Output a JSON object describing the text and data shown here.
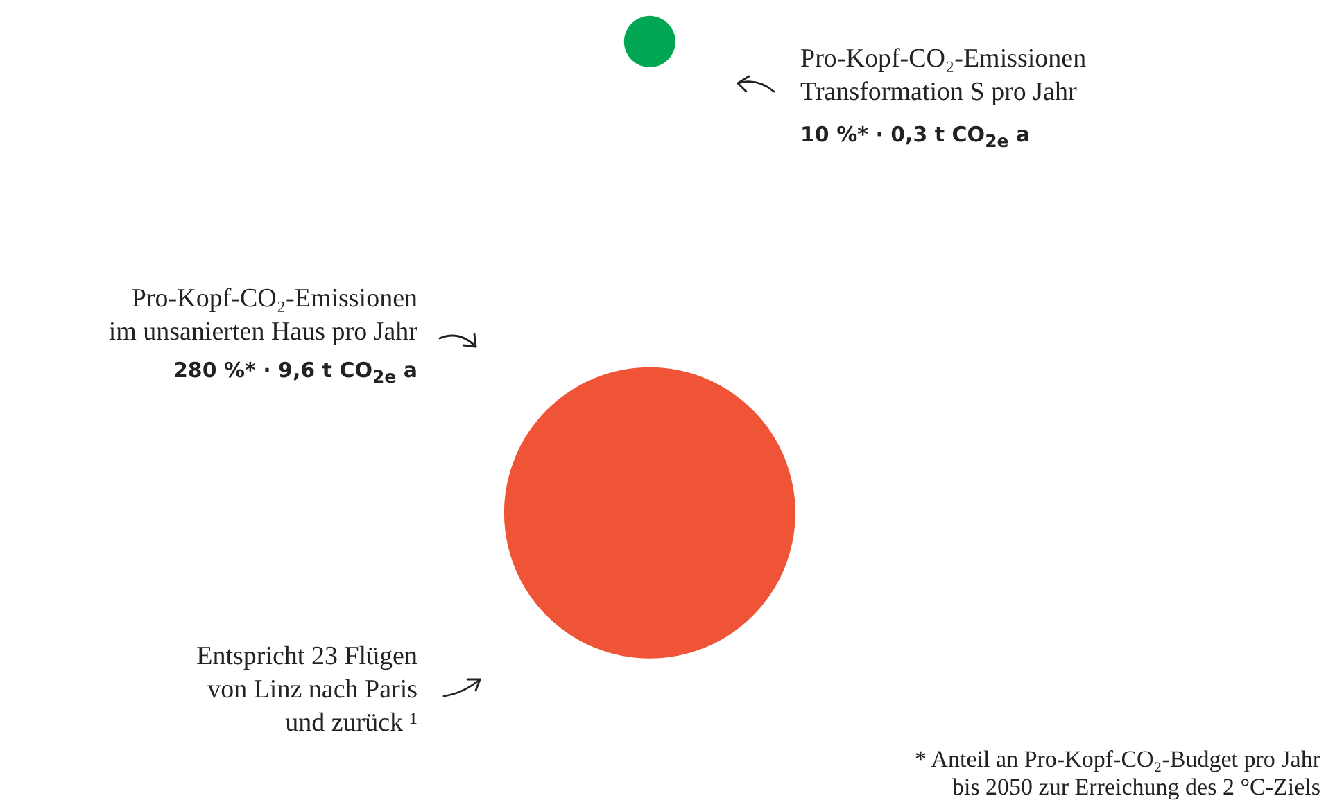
{
  "chart_data": {
    "type": "other",
    "categories": [
      null,
      null
    ],
    "values": [
      0.3,
      9.6
    ],
    "colors": [
      "#00a651",
      "#f05436"
    ],
    "value_labels": [
      "10 %* · 0,3 t CO$_{2e}$ a",
      "280 %* · 9,6 t CO$_{2e}$ a"
    ],
    "annotations": [
      "Pro-Kopf-CO₂-Emissionen\nTransformation S pro Jahr",
      "Pro-Kopf-CO₂-Emissionen\nim unsanierten Haus pro Jahr",
      "Entspricht 23 Flügen\nvon Linz nach Paris\nund zurück ¹",
      "* Anteil an Pro-Kopf-CO₂-Budget pro Jahr\nbis 2050 zur Erreichung des 2 °C-Ziels"
    ]
  }
}
